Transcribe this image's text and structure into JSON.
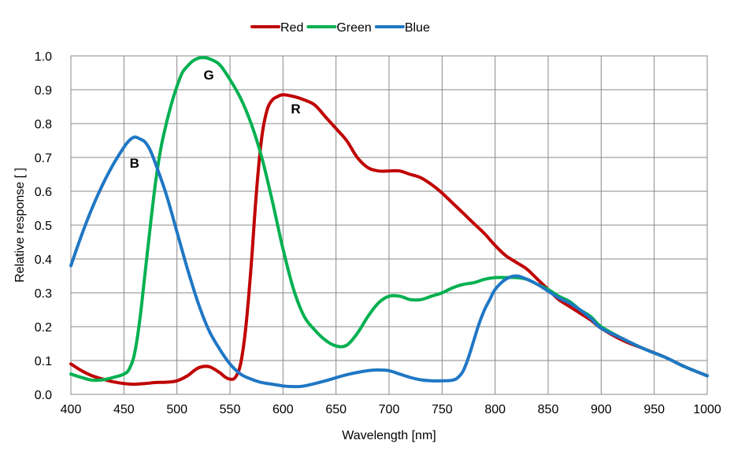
{
  "chart_data": {
    "type": "line",
    "title": "",
    "xlabel": "Wavelength [nm]",
    "ylabel": "Relative response [ ]",
    "xlim": [
      400,
      1000
    ],
    "ylim": [
      0,
      1.0
    ],
    "xticks": [
      400,
      450,
      500,
      550,
      600,
      650,
      700,
      750,
      800,
      850,
      900,
      950,
      1000
    ],
    "yticks": [
      0,
      0.1,
      0.2,
      0.3,
      0.4,
      0.5,
      0.6,
      0.7,
      0.8,
      0.9,
      1.0
    ],
    "xtick_labels": [
      "400",
      "450",
      "500",
      "550",
      "600",
      "650",
      "700",
      "750",
      "800",
      "850",
      "900",
      "950",
      "1000"
    ],
    "ytick_labels": [
      "0.0",
      "0.1",
      "0.2",
      "0.3",
      "0.4",
      "0.5",
      "0.6",
      "0.7",
      "0.8",
      "0.9",
      "1.0"
    ],
    "grid": true,
    "legend_position": "top-center",
    "series": [
      {
        "name": "Red",
        "color": "#c00000",
        "x": [
          400,
          410,
          420,
          430,
          440,
          450,
          460,
          470,
          480,
          490,
          500,
          510,
          520,
          530,
          540,
          545,
          550,
          555,
          560,
          565,
          570,
          575,
          580,
          585,
          590,
          595,
          600,
          610,
          620,
          630,
          640,
          650,
          660,
          670,
          680,
          690,
          700,
          710,
          720,
          730,
          740,
          750,
          760,
          770,
          780,
          790,
          800,
          810,
          820,
          830,
          840,
          850,
          860,
          870,
          880,
          890,
          900,
          920,
          940,
          960,
          980,
          1000
        ],
        "y": [
          0.09,
          0.07,
          0.055,
          0.045,
          0.037,
          0.032,
          0.03,
          0.032,
          0.035,
          0.036,
          0.04,
          0.055,
          0.078,
          0.082,
          0.065,
          0.052,
          0.045,
          0.05,
          0.09,
          0.2,
          0.38,
          0.6,
          0.76,
          0.84,
          0.87,
          0.88,
          0.885,
          0.88,
          0.87,
          0.855,
          0.82,
          0.785,
          0.75,
          0.7,
          0.67,
          0.66,
          0.66,
          0.66,
          0.65,
          0.64,
          0.62,
          0.595,
          0.565,
          0.535,
          0.505,
          0.475,
          0.44,
          0.41,
          0.39,
          0.37,
          0.34,
          0.31,
          0.28,
          0.26,
          0.24,
          0.22,
          0.195,
          0.16,
          0.135,
          0.11,
          0.08,
          0.055
        ]
      },
      {
        "name": "Green",
        "color": "#00b050",
        "x": [
          400,
          410,
          420,
          430,
          440,
          450,
          455,
          460,
          465,
          470,
          475,
          480,
          485,
          490,
          495,
          500,
          505,
          510,
          515,
          520,
          525,
          530,
          540,
          550,
          560,
          570,
          580,
          590,
          600,
          610,
          620,
          630,
          640,
          650,
          660,
          670,
          680,
          690,
          700,
          710,
          720,
          730,
          740,
          750,
          760,
          770,
          780,
          790,
          800,
          810,
          820,
          830,
          840,
          850,
          860,
          870,
          880,
          890,
          900,
          920,
          940,
          960,
          980,
          1000
        ],
        "y": [
          0.06,
          0.05,
          0.042,
          0.043,
          0.05,
          0.06,
          0.075,
          0.12,
          0.22,
          0.36,
          0.5,
          0.63,
          0.73,
          0.8,
          0.86,
          0.91,
          0.95,
          0.97,
          0.985,
          0.993,
          0.995,
          0.992,
          0.975,
          0.93,
          0.875,
          0.8,
          0.7,
          0.57,
          0.43,
          0.31,
          0.23,
          0.19,
          0.16,
          0.143,
          0.145,
          0.18,
          0.23,
          0.27,
          0.29,
          0.29,
          0.28,
          0.28,
          0.29,
          0.3,
          0.315,
          0.325,
          0.33,
          0.34,
          0.345,
          0.345,
          0.345,
          0.34,
          0.325,
          0.31,
          0.29,
          0.275,
          0.25,
          0.23,
          0.2,
          0.165,
          0.135,
          0.11,
          0.08,
          0.055
        ]
      },
      {
        "name": "Blue",
        "color": "#1f77c4",
        "x": [
          400,
          410,
          420,
          430,
          440,
          450,
          455,
          460,
          465,
          470,
          475,
          480,
          490,
          500,
          510,
          520,
          530,
          540,
          550,
          560,
          570,
          580,
          590,
          600,
          610,
          620,
          640,
          660,
          680,
          690,
          700,
          710,
          720,
          730,
          740,
          750,
          760,
          765,
          770,
          775,
          780,
          785,
          790,
          795,
          800,
          810,
          820,
          830,
          840,
          850,
          860,
          870,
          880,
          890,
          900,
          920,
          940,
          960,
          980,
          1000
        ],
        "y": [
          0.38,
          0.47,
          0.55,
          0.62,
          0.68,
          0.73,
          0.75,
          0.76,
          0.755,
          0.745,
          0.72,
          0.68,
          0.59,
          0.48,
          0.37,
          0.27,
          0.19,
          0.135,
          0.09,
          0.06,
          0.045,
          0.035,
          0.03,
          0.025,
          0.023,
          0.025,
          0.04,
          0.058,
          0.07,
          0.072,
          0.07,
          0.06,
          0.05,
          0.043,
          0.04,
          0.04,
          0.042,
          0.05,
          0.07,
          0.11,
          0.16,
          0.21,
          0.25,
          0.28,
          0.31,
          0.34,
          0.35,
          0.34,
          0.325,
          0.305,
          0.285,
          0.27,
          0.25,
          0.225,
          0.195,
          0.165,
          0.135,
          0.11,
          0.08,
          0.055
        ]
      }
    ],
    "annotations": [
      {
        "text": "R",
        "x": 612,
        "y": 0.83
      },
      {
        "text": "G",
        "x": 530,
        "y": 0.93
      },
      {
        "text": "B",
        "x": 460,
        "y": 0.67
      }
    ]
  }
}
